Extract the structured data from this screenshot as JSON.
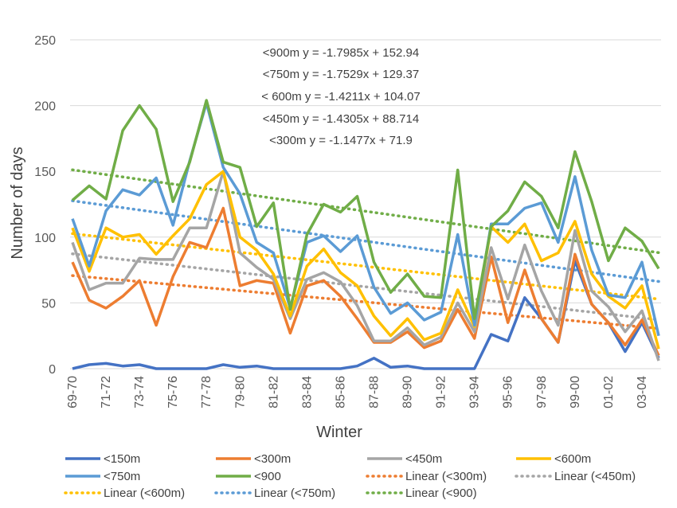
{
  "chart_data": {
    "type": "line",
    "title": "",
    "xlabel": "Winter",
    "ylabel": "Number of days",
    "ylim": [
      0,
      250
    ],
    "yticks": [
      0,
      50,
      100,
      150,
      200,
      250
    ],
    "grid": "horizontal",
    "legend_position": "bottom",
    "categories": [
      "69-70",
      "70-71",
      "71-72",
      "72-73",
      "73-74",
      "74-75",
      "75-76",
      "76-77",
      "77-78",
      "78-79",
      "79-80",
      "80-81",
      "81-82",
      "82-83",
      "83-84",
      "84-85",
      "85-86",
      "86-87",
      "87-88",
      "88-89",
      "89-90",
      "90-91",
      "91-92",
      "92-93",
      "93-94",
      "94-95",
      "95-96",
      "96-97",
      "97-98",
      "98-99",
      "99-00",
      "00-01",
      "01-02",
      "02-03",
      "03-04",
      "04-05"
    ],
    "x_tick_labels": [
      "69-70",
      "71-72",
      "73-74",
      "75-76",
      "77-78",
      "79-80",
      "81-82",
      "83-84",
      "85-86",
      "87-88",
      "89-90",
      "91-92",
      "93-94",
      "95-96",
      "97-98",
      "99-00",
      "01-02",
      "03-04"
    ],
    "series": [
      {
        "name": "<150m",
        "color": "#4472C4",
        "style": "solid",
        "values": [
          0,
          3,
          4,
          2,
          3,
          0,
          0,
          0,
          0,
          3,
          1,
          2,
          0,
          0,
          0,
          0,
          0,
          2,
          8,
          1,
          2,
          0,
          0,
          0,
          0,
          26,
          21,
          54,
          38,
          20,
          82,
          49,
          35,
          13,
          35,
          8
        ]
      },
      {
        "name": "<300m",
        "color": "#ED7D31",
        "style": "solid",
        "values": [
          81,
          52,
          46,
          55,
          67,
          33,
          70,
          96,
          92,
          122,
          63,
          67,
          65,
          27,
          63,
          67,
          55,
          38,
          20,
          20,
          28,
          16,
          21,
          45,
          23,
          85,
          35,
          75,
          38,
          20,
          87,
          49,
          35,
          18,
          37,
          10
        ]
      },
      {
        "name": "<450m",
        "color": "#A5A5A5",
        "style": "solid",
        "values": [
          96,
          60,
          65,
          65,
          84,
          83,
          83,
          107,
          107,
          150,
          88,
          77,
          68,
          38,
          68,
          73,
          66,
          48,
          21,
          21,
          31,
          18,
          24,
          50,
          28,
          92,
          53,
          94,
          59,
          33,
          105,
          59,
          47,
          28,
          44,
          6
        ]
      },
      {
        "name": "<600m",
        "color": "#FFC000",
        "style": "solid",
        "values": [
          107,
          74,
          107,
          100,
          102,
          87,
          101,
          114,
          140,
          150,
          100,
          90,
          72,
          40,
          78,
          91,
          73,
          63,
          40,
          25,
          38,
          22,
          27,
          60,
          32,
          108,
          96,
          110,
          82,
          88,
          112,
          72,
          55,
          46,
          63,
          15
        ]
      },
      {
        "name": "<750m",
        "color": "#5B9BD5",
        "style": "solid",
        "values": [
          114,
          78,
          120,
          136,
          132,
          145,
          109,
          158,
          202,
          153,
          133,
          96,
          88,
          46,
          96,
          101,
          89,
          101,
          62,
          42,
          50,
          37,
          43,
          102,
          33,
          110,
          110,
          122,
          126,
          96,
          146,
          90,
          56,
          54,
          81,
          25
        ]
      },
      {
        "name": "<900",
        "color": "#70AD47",
        "style": "solid",
        "values": [
          128,
          139,
          129,
          181,
          200,
          182,
          127,
          157,
          204,
          157,
          153,
          108,
          126,
          45,
          102,
          125,
          119,
          131,
          81,
          58,
          72,
          55,
          54,
          151,
          38,
          108,
          120,
          142,
          131,
          107,
          165,
          127,
          82,
          107,
          97,
          76
        ]
      },
      {
        "name": "Linear (<300m)",
        "color": "#ED7D31",
        "style": "dotted",
        "slope": -1.1477,
        "intercept": 71.9
      },
      {
        "name": "Linear (<450m)",
        "color": "#A5A5A5",
        "style": "dotted",
        "slope": -1.4305,
        "intercept": 88.714
      },
      {
        "name": "Linear (<600m)",
        "color": "#FFC000",
        "style": "dotted",
        "slope": -1.4211,
        "intercept": 104.07
      },
      {
        "name": "Linear (<750m)",
        "color": "#5B9BD5",
        "style": "dotted",
        "slope": -1.7529,
        "intercept": 129.37
      },
      {
        "name": "Linear (<900)",
        "color": "#70AD47",
        "style": "dotted",
        "slope": -1.7985,
        "intercept": 152.94
      }
    ],
    "annotations": [
      "<900m y = -1.7985x + 152.94",
      "<750m y = -1.7529x + 129.37",
      "< 600m y = -1.4211x + 104.07",
      "<450m y = -1.4305x + 88.714",
      "<300m y = -1.1477x + 71.9"
    ]
  }
}
